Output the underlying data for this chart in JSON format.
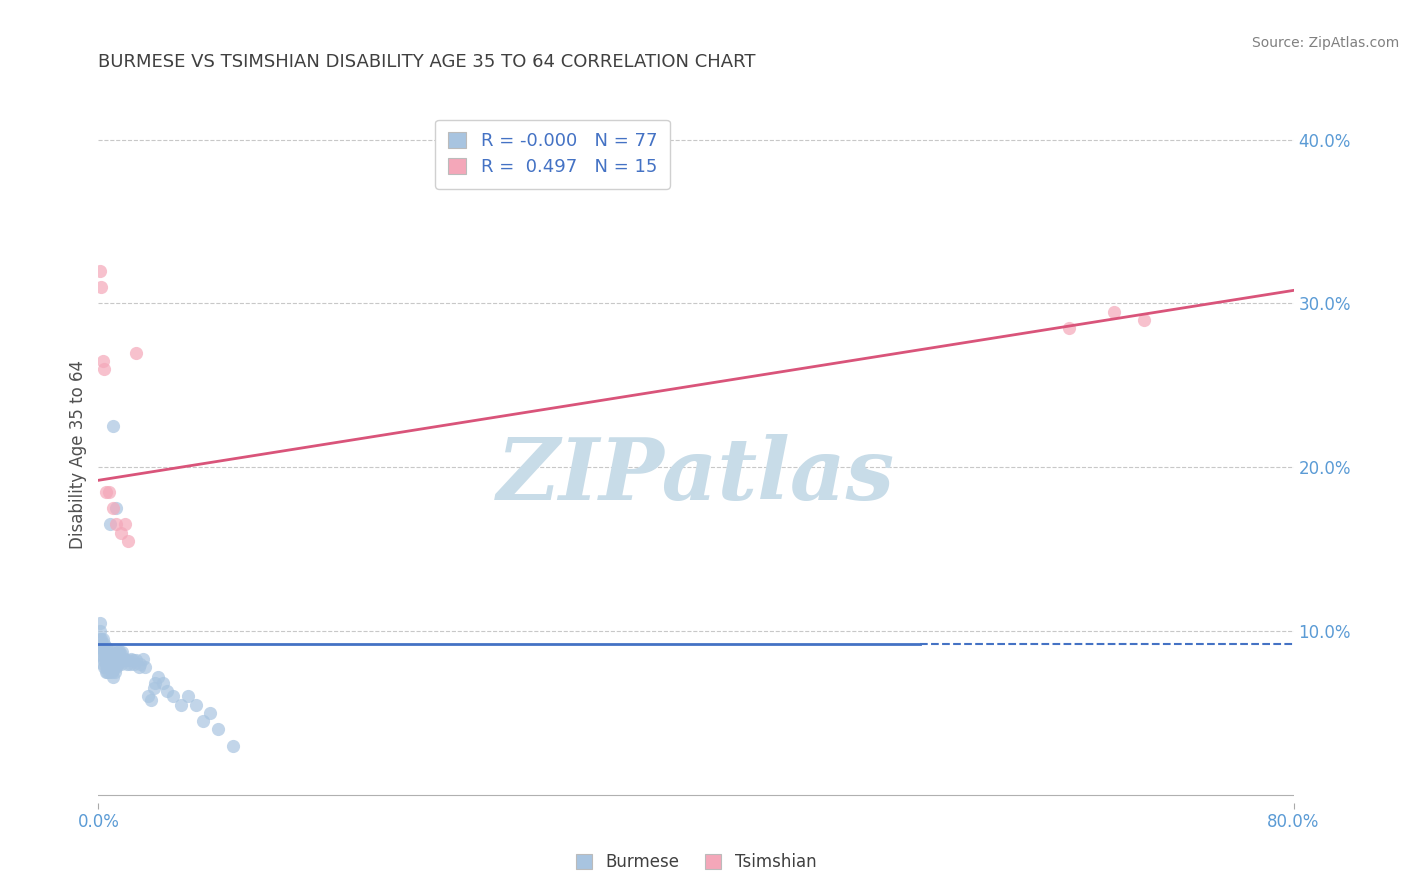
{
  "title": "BURMESE VS TSIMSHIAN DISABILITY AGE 35 TO 64 CORRELATION CHART",
  "source_text": "Source: ZipAtlas.com",
  "ylabel": "Disability Age 35 to 64",
  "xlim": [
    0.0,
    0.8
  ],
  "ylim": [
    -0.005,
    0.42
  ],
  "xticks": [
    0.0,
    0.8
  ],
  "xticklabels": [
    "0.0%",
    "80.0%"
  ],
  "yticks_left": [],
  "yticks_right": [
    0.1,
    0.2,
    0.3,
    0.4
  ],
  "yticklabels_right": [
    "10.0%",
    "20.0%",
    "30.0%",
    "40.0%"
  ],
  "grid_yticks": [
    0.1,
    0.2,
    0.3,
    0.4
  ],
  "burmese_color": "#a8c4e0",
  "tsimshian_color": "#f4a7b9",
  "burmese_line_color": "#4472c4",
  "tsimshian_line_color": "#d9547a",
  "burmese_R": "-0.000",
  "burmese_N": 77,
  "tsimshian_R": "0.497",
  "tsimshian_N": 15,
  "watermark": "ZIPatlas",
  "watermark_color": "#c8dce8",
  "title_color": "#404040",
  "axis_label_color": "#505050",
  "tick_color": "#5b9bd5",
  "legend_R_color": "#4472c4",
  "burmese_trend_x0": 0.0,
  "burmese_trend_x1": 0.55,
  "burmese_trend_y0": 0.092,
  "burmese_trend_y1": 0.092,
  "burmese_trend_dashed_x0": 0.55,
  "burmese_trend_dashed_x1": 0.8,
  "tsimshian_trend_x0": 0.0,
  "tsimshian_trend_x1": 0.8,
  "tsimshian_trend_y0": 0.192,
  "tsimshian_trend_y1": 0.308,
  "burmese_x": [
    0.001,
    0.001,
    0.001,
    0.001,
    0.002,
    0.002,
    0.002,
    0.003,
    0.003,
    0.003,
    0.003,
    0.004,
    0.004,
    0.004,
    0.004,
    0.005,
    0.005,
    0.005,
    0.005,
    0.006,
    0.006,
    0.006,
    0.007,
    0.007,
    0.008,
    0.008,
    0.008,
    0.009,
    0.009,
    0.01,
    0.01,
    0.01,
    0.01,
    0.011,
    0.011,
    0.011,
    0.012,
    0.012,
    0.013,
    0.013,
    0.014,
    0.014,
    0.015,
    0.015,
    0.016,
    0.016,
    0.017,
    0.018,
    0.019,
    0.02,
    0.021,
    0.022,
    0.023,
    0.024,
    0.025,
    0.027,
    0.028,
    0.03,
    0.031,
    0.033,
    0.035,
    0.037,
    0.038,
    0.04,
    0.043,
    0.046,
    0.05,
    0.055,
    0.06,
    0.065,
    0.07,
    0.075,
    0.08,
    0.09,
    0.008,
    0.01,
    0.012
  ],
  "burmese_y": [
    0.09,
    0.095,
    0.1,
    0.105,
    0.085,
    0.09,
    0.095,
    0.08,
    0.085,
    0.09,
    0.095,
    0.078,
    0.082,
    0.087,
    0.092,
    0.075,
    0.08,
    0.085,
    0.09,
    0.075,
    0.08,
    0.085,
    0.075,
    0.082,
    0.078,
    0.083,
    0.088,
    0.075,
    0.08,
    0.072,
    0.076,
    0.082,
    0.088,
    0.075,
    0.08,
    0.086,
    0.078,
    0.085,
    0.08,
    0.087,
    0.082,
    0.088,
    0.08,
    0.086,
    0.082,
    0.087,
    0.083,
    0.082,
    0.08,
    0.082,
    0.08,
    0.083,
    0.082,
    0.08,
    0.082,
    0.078,
    0.08,
    0.083,
    0.078,
    0.06,
    0.058,
    0.065,
    0.068,
    0.072,
    0.068,
    0.063,
    0.06,
    0.055,
    0.06,
    0.055,
    0.045,
    0.05,
    0.04,
    0.03,
    0.165,
    0.225,
    0.175
  ],
  "tsimshian_x": [
    0.001,
    0.002,
    0.003,
    0.004,
    0.005,
    0.007,
    0.01,
    0.012,
    0.015,
    0.018,
    0.02,
    0.025,
    0.65,
    0.68,
    0.7
  ],
  "tsimshian_y": [
    0.32,
    0.31,
    0.265,
    0.26,
    0.185,
    0.185,
    0.175,
    0.165,
    0.16,
    0.165,
    0.155,
    0.27,
    0.285,
    0.295,
    0.29
  ]
}
